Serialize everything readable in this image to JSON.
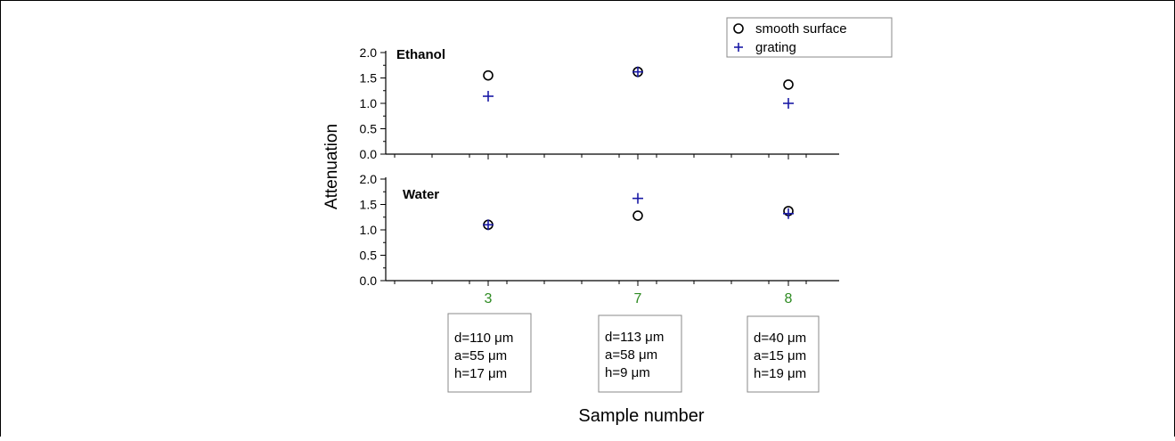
{
  "chart_data": {
    "type": "scatter",
    "xlabel": "Sample number",
    "ylabel": "Attenuation",
    "categories": [
      "3",
      "7",
      "8"
    ],
    "legend": {
      "placement": "top-right",
      "entries": [
        {
          "label": "smooth surface",
          "marker": "circle",
          "color": "#000000"
        },
        {
          "label": "grating",
          "marker": "plus",
          "color": "#1a1aa6"
        }
      ]
    },
    "panels": [
      {
        "label": "Ethanol",
        "ylim": [
          0.0,
          2.0
        ],
        "yticks": [
          "0.0",
          "0.5",
          "1.0",
          "1.5",
          "2.0"
        ],
        "series": [
          {
            "name": "smooth surface",
            "values": [
              1.55,
              1.62,
              1.37
            ]
          },
          {
            "name": "grating",
            "values": [
              1.14,
              1.62,
              1.0
            ]
          }
        ]
      },
      {
        "label": "Water",
        "ylim": [
          0.0,
          2.0
        ],
        "yticks": [
          "0.0",
          "0.5",
          "1.0",
          "1.5",
          "2.0"
        ],
        "series": [
          {
            "name": "smooth surface",
            "values": [
              1.1,
              1.28,
              1.37
            ]
          },
          {
            "name": "grating",
            "values": [
              1.1,
              1.62,
              1.32
            ]
          }
        ]
      }
    ],
    "sample_params": [
      [
        "d=110 μm",
        "a=55 μm",
        "h=17 μm"
      ],
      [
        "d=113 μm",
        "a=58 μm",
        "h=9 μm"
      ],
      [
        "d=40 μm",
        "a=15 μm",
        "h=19 μm"
      ]
    ],
    "colors": {
      "category_label": "#2e8b22",
      "smooth_surface": "#000000",
      "grating": "#1a1aa6"
    }
  }
}
